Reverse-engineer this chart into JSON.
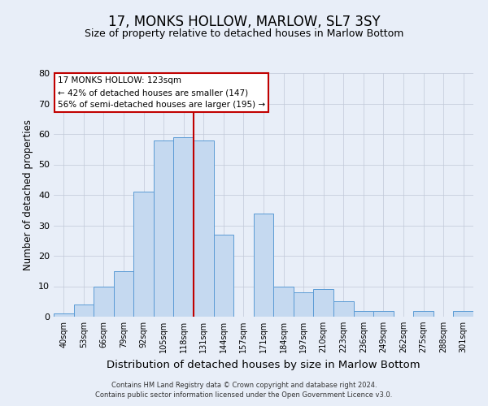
{
  "title": "17, MONKS HOLLOW, MARLOW, SL7 3SY",
  "subtitle": "Size of property relative to detached houses in Marlow Bottom",
  "xlabel": "Distribution of detached houses by size in Marlow Bottom",
  "ylabel": "Number of detached properties",
  "bin_labels": [
    "40sqm",
    "53sqm",
    "66sqm",
    "79sqm",
    "92sqm",
    "105sqm",
    "118sqm",
    "131sqm",
    "144sqm",
    "157sqm",
    "171sqm",
    "184sqm",
    "197sqm",
    "210sqm",
    "223sqm",
    "236sqm",
    "249sqm",
    "262sqm",
    "275sqm",
    "288sqm",
    "301sqm"
  ],
  "bar_values": [
    1,
    4,
    10,
    15,
    41,
    58,
    59,
    58,
    27,
    0,
    34,
    10,
    8,
    9,
    5,
    2,
    2,
    0,
    2,
    0,
    2
  ],
  "bar_color": "#c5d9f0",
  "bar_edge_color": "#5b9bd5",
  "ylim": [
    0,
    80
  ],
  "yticks": [
    0,
    10,
    20,
    30,
    40,
    50,
    60,
    70,
    80
  ],
  "vline_x": 6.5,
  "vline_color": "#c00000",
  "annotation_title": "17 MONKS HOLLOW: 123sqm",
  "annotation_line1": "← 42% of detached houses are smaller (147)",
  "annotation_line2": "56% of semi-detached houses are larger (195) →",
  "annotation_box_color": "#ffffff",
  "annotation_box_edge": "#c00000",
  "footer1": "Contains HM Land Registry data © Crown copyright and database right 2024.",
  "footer2": "Contains public sector information licensed under the Open Government Licence v3.0.",
  "background_color": "#e8eef8",
  "title_fontsize": 12,
  "subtitle_fontsize": 9,
  "xlabel_fontsize": 9.5,
  "ylabel_fontsize": 8.5
}
